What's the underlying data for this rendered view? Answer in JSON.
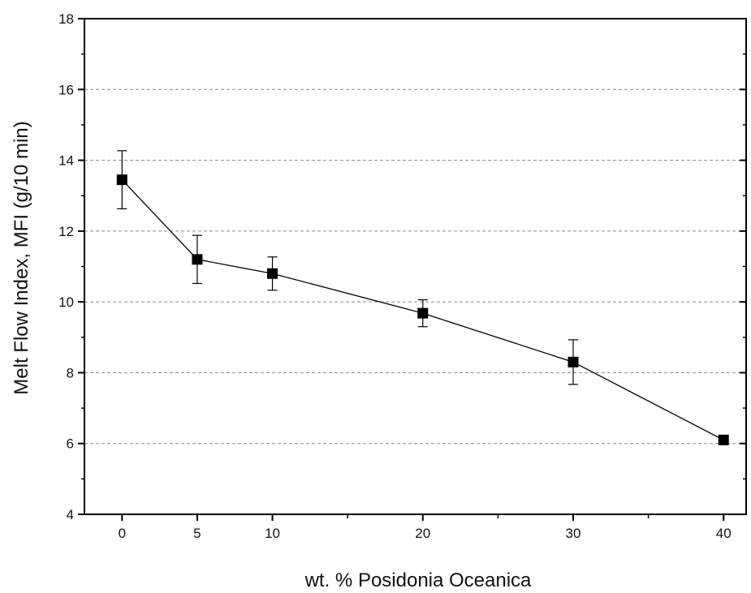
{
  "chart_data": {
    "type": "line",
    "title": "",
    "xlabel": "wt. % Posidonia Oceanica",
    "ylabel": "Melt Flow Index, MFI (g/10 min)",
    "xlim": [
      -2.5,
      41.5
    ],
    "ylim": [
      4,
      18
    ],
    "x_ticks": [
      0,
      5,
      10,
      20,
      30,
      40
    ],
    "x_minor_ticks": [
      15,
      25,
      35
    ],
    "y_ticks": [
      4,
      6,
      8,
      10,
      12,
      14,
      16,
      18
    ],
    "y_minor_step": 1,
    "grid": {
      "horizontal": true,
      "style": "dashed",
      "at": [
        6,
        8,
        10,
        12,
        14,
        16
      ]
    },
    "legend": "none",
    "marker": "square",
    "series": [
      {
        "x": [
          0,
          5,
          10,
          20,
          30,
          40
        ],
        "y": [
          13.45,
          11.2,
          10.8,
          9.68,
          8.3,
          6.1
        ],
        "error": [
          0.82,
          0.68,
          0.47,
          0.38,
          0.63,
          null
        ]
      }
    ],
    "colors": {
      "line": "#000000",
      "grid": "#888888"
    }
  }
}
